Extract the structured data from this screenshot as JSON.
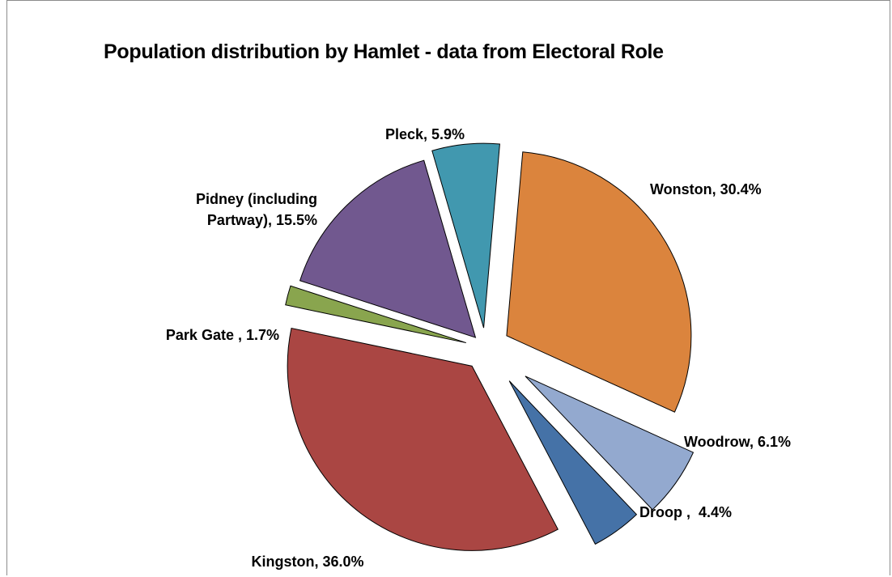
{
  "chart_data": {
    "type": "pie",
    "title": "Population distribution by Hamlet - data from Electoral Role",
    "slices": [
      {
        "name": "Wonston",
        "label": [
          "Wonston, 30.4%"
        ],
        "value": 30.4,
        "color": "#db843d",
        "explode": 30
      },
      {
        "name": "Woodrow",
        "label": [
          "Woodrow, 6.1%"
        ],
        "value": 6.1,
        "color": "#93a9cf",
        "explode": 60
      },
      {
        "name": "Droop",
        "label": [
          "Droop ,  4.4%"
        ],
        "value": 4.4,
        "color": "#4572a7",
        "explode": 50
      },
      {
        "name": "Kingston",
        "label": [
          "Kingston, 36.0%"
        ],
        "value": 36.0,
        "color": "#aa4643",
        "explode": 28
      },
      {
        "name": "Park Gate",
        "label": [
          "Park Gate , 1.7%"
        ],
        "value": 1.7,
        "color": "#89a54e",
        "explode": 25
      },
      {
        "name": "Pidney (including Partway)",
        "label": [
          "Pidney (including",
          "Partway), 15.5%"
        ],
        "value": 15.5,
        "color": "#71588f",
        "explode": 18
      },
      {
        "name": "Pleck",
        "label": [
          "Pleck, 5.9%"
        ],
        "value": 5.9,
        "color": "#4198af",
        "explode": 25
      }
    ]
  }
}
